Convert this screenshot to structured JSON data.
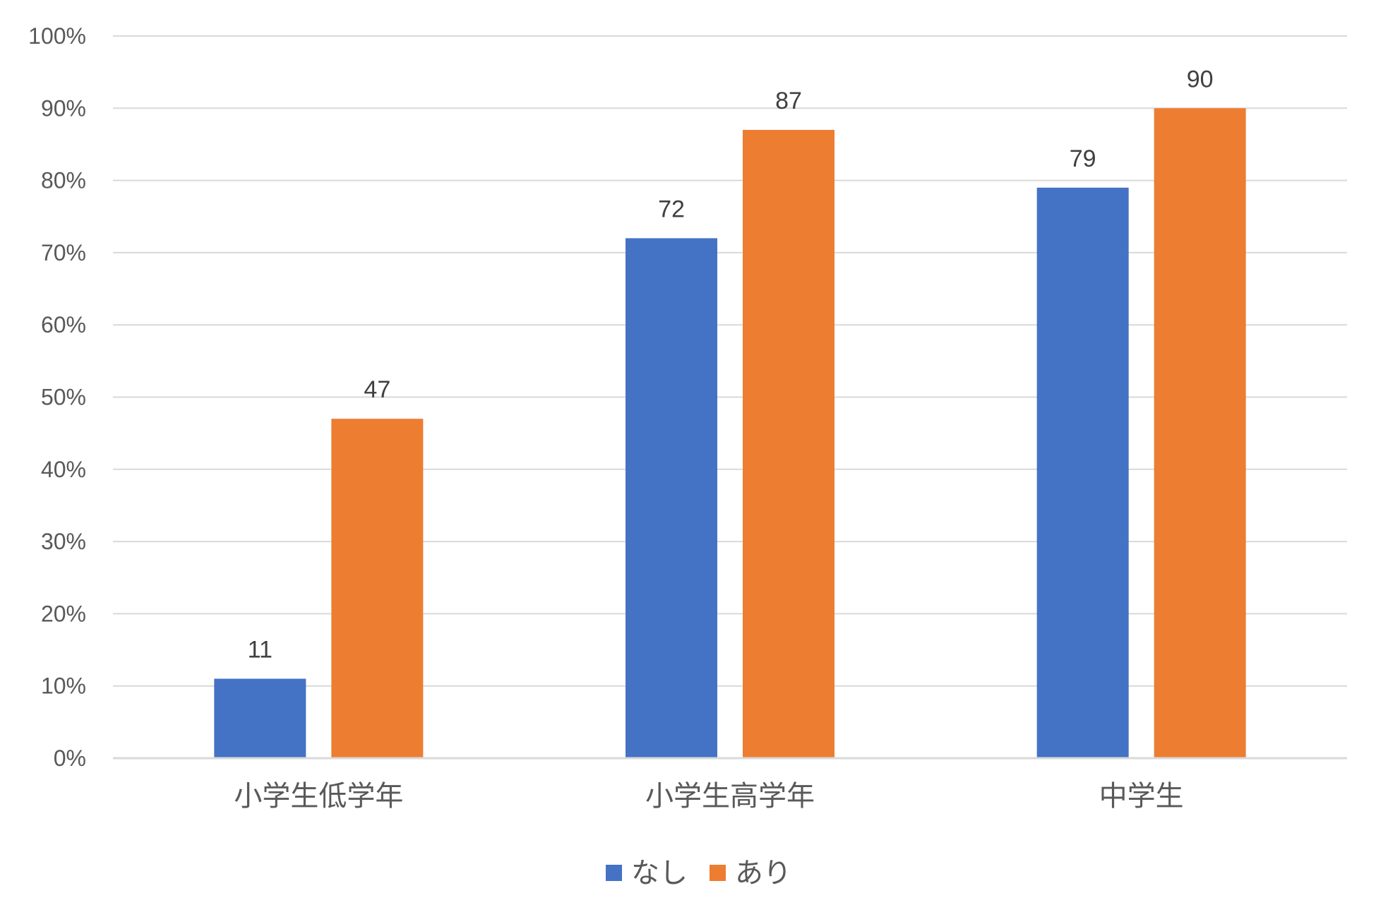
{
  "chart_data": {
    "type": "bar",
    "title": "",
    "xlabel": "",
    "ylabel": "",
    "categories": [
      "小学生低学年",
      "小学生高学年",
      "中学生"
    ],
    "series": [
      {
        "name": "なし",
        "values": [
          11,
          72,
          79
        ],
        "color": "#4472C4"
      },
      {
        "name": "あり",
        "values": [
          47,
          87,
          90
        ],
        "color": "#ED7D31"
      }
    ],
    "data_labels": [
      [
        "11",
        "72",
        "79"
      ],
      [
        "47",
        "87",
        "90"
      ]
    ],
    "ylim": [
      0,
      100
    ],
    "yticks": [
      "0%",
      "10%",
      "20%",
      "30%",
      "40%",
      "50%",
      "60%",
      "70%",
      "80%",
      "90%",
      "100%"
    ],
    "grid": true,
    "legend_position": "bottom",
    "gridline_color": "#D9D9D9"
  }
}
